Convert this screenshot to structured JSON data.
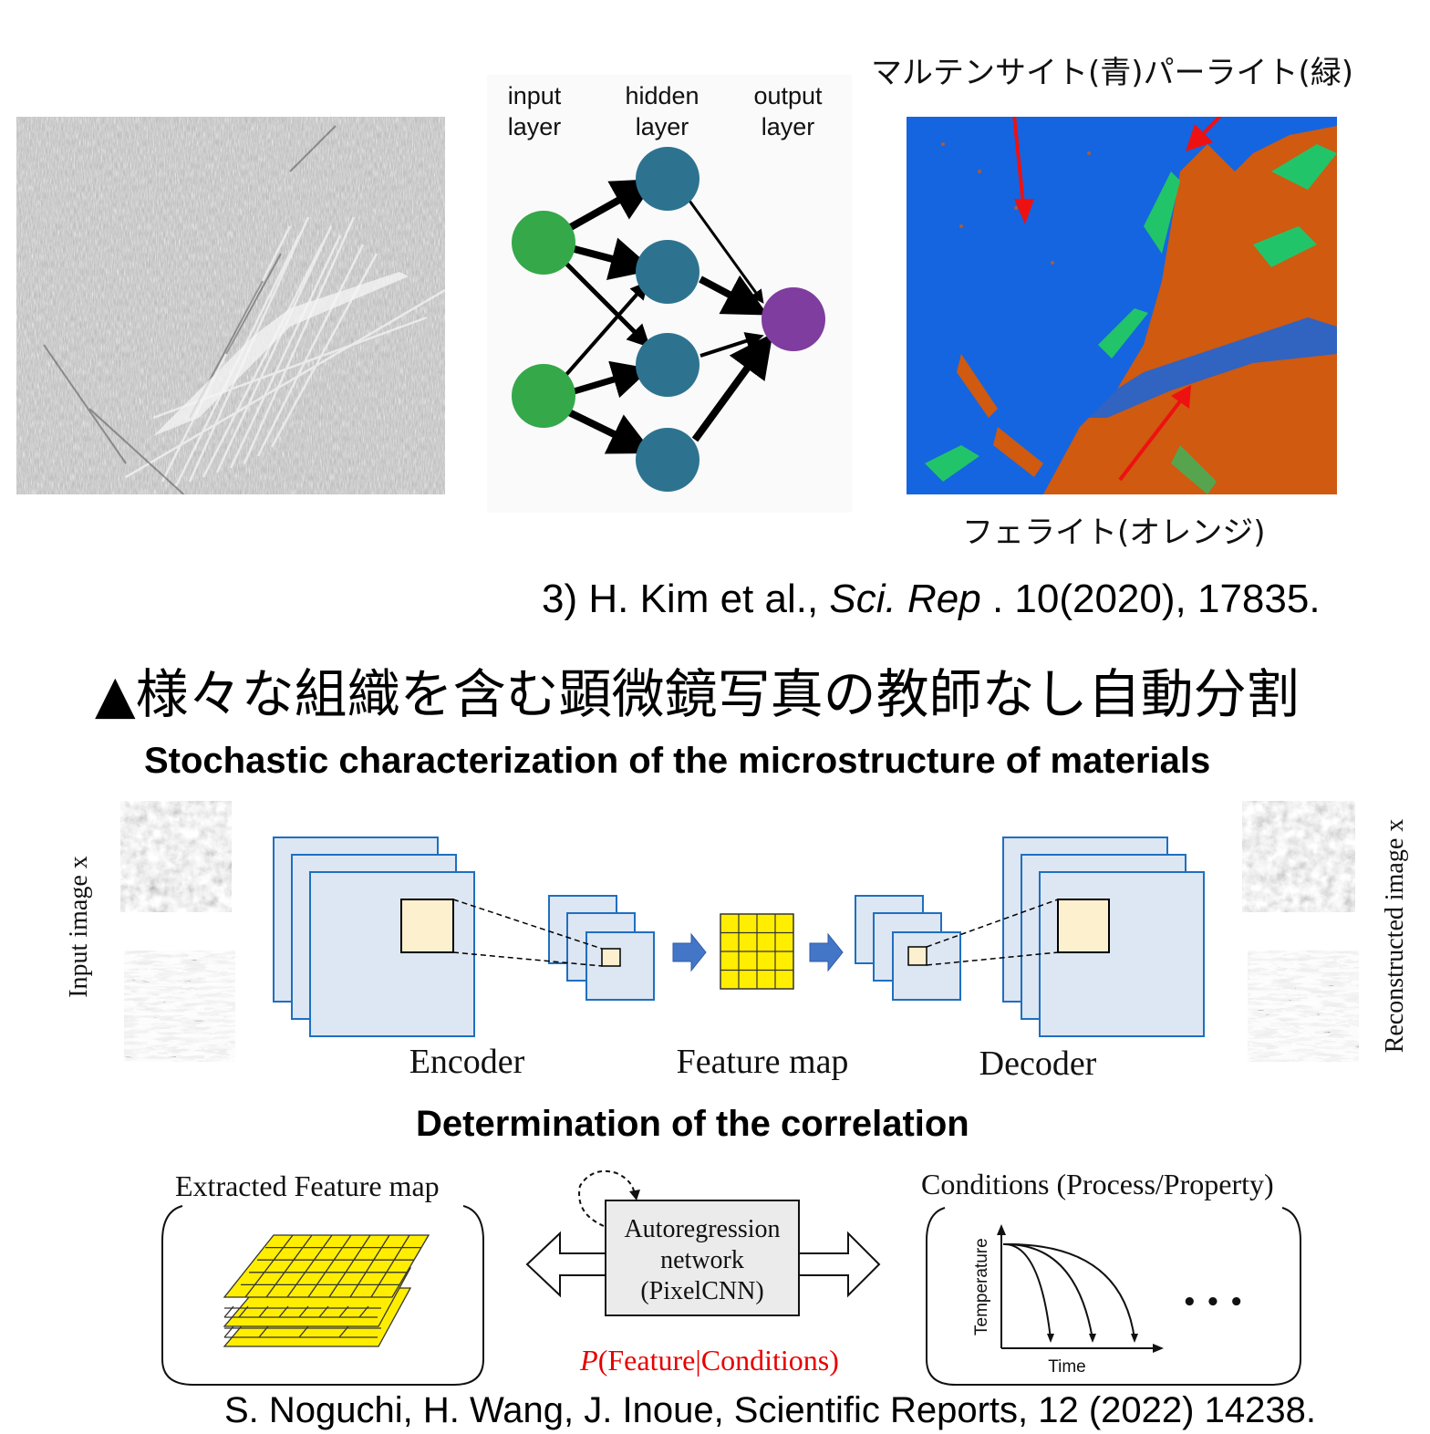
{
  "top_panel": {
    "micrograph_label": "",
    "nn_diagram": {
      "input_label_1": "input",
      "input_label_2": "layer",
      "hidden_label_1": "hidden",
      "hidden_label_2": "layer",
      "output_label_1": "output",
      "output_label_2": "layer",
      "colors": {
        "input": "#35a84a",
        "hidden": "#2d7390",
        "output": "#7f3d9f"
      }
    },
    "segmentation": {
      "label_martensite_pearlite": "マルテンサイト(青)パーライト(緑)",
      "label_ferrite": "フェライト(オレンジ)",
      "colors": {
        "blue": "#1565e0",
        "orange": "#cf5a10",
        "green": "#22c46a",
        "arrow": "#ee1111"
      }
    }
  },
  "citation_1": {
    "prefix": "3) H. Kim et al., ",
    "journal": "Sci. Rep",
    "suffix": " . 10(2020), 17835."
  },
  "jp_title": "▲様々な組織を含む顕微鏡写真の教師なし自動分割",
  "section_1": {
    "title": "Stochastic characterization of the microstructure of materials",
    "input_label": "Input image x",
    "reconstructed_label": "Reconstructed image x",
    "encoder_label": "Encoder",
    "feature_map_label": "Feature map",
    "decoder_label": "Decoder"
  },
  "section_2": {
    "title": "Determination of the correlation",
    "extracted_label": "Extracted Feature map",
    "conditions_label": "Conditions (Process/Property)",
    "network_line_1": "Autoregression",
    "network_line_2": "network",
    "network_line_3": "(PixelCNN)",
    "probability_label": "P(Feature|Conditions)",
    "prob_p": "P",
    "prob_rest": "(Feature|Conditions)",
    "temperature_label": "Temperature",
    "time_label": "Time",
    "ellipsis": "• • •"
  },
  "citation_2": "S. Noguchi, H. Wang, J. Inoue, Scientific Reports, 12 (2022) 14238."
}
